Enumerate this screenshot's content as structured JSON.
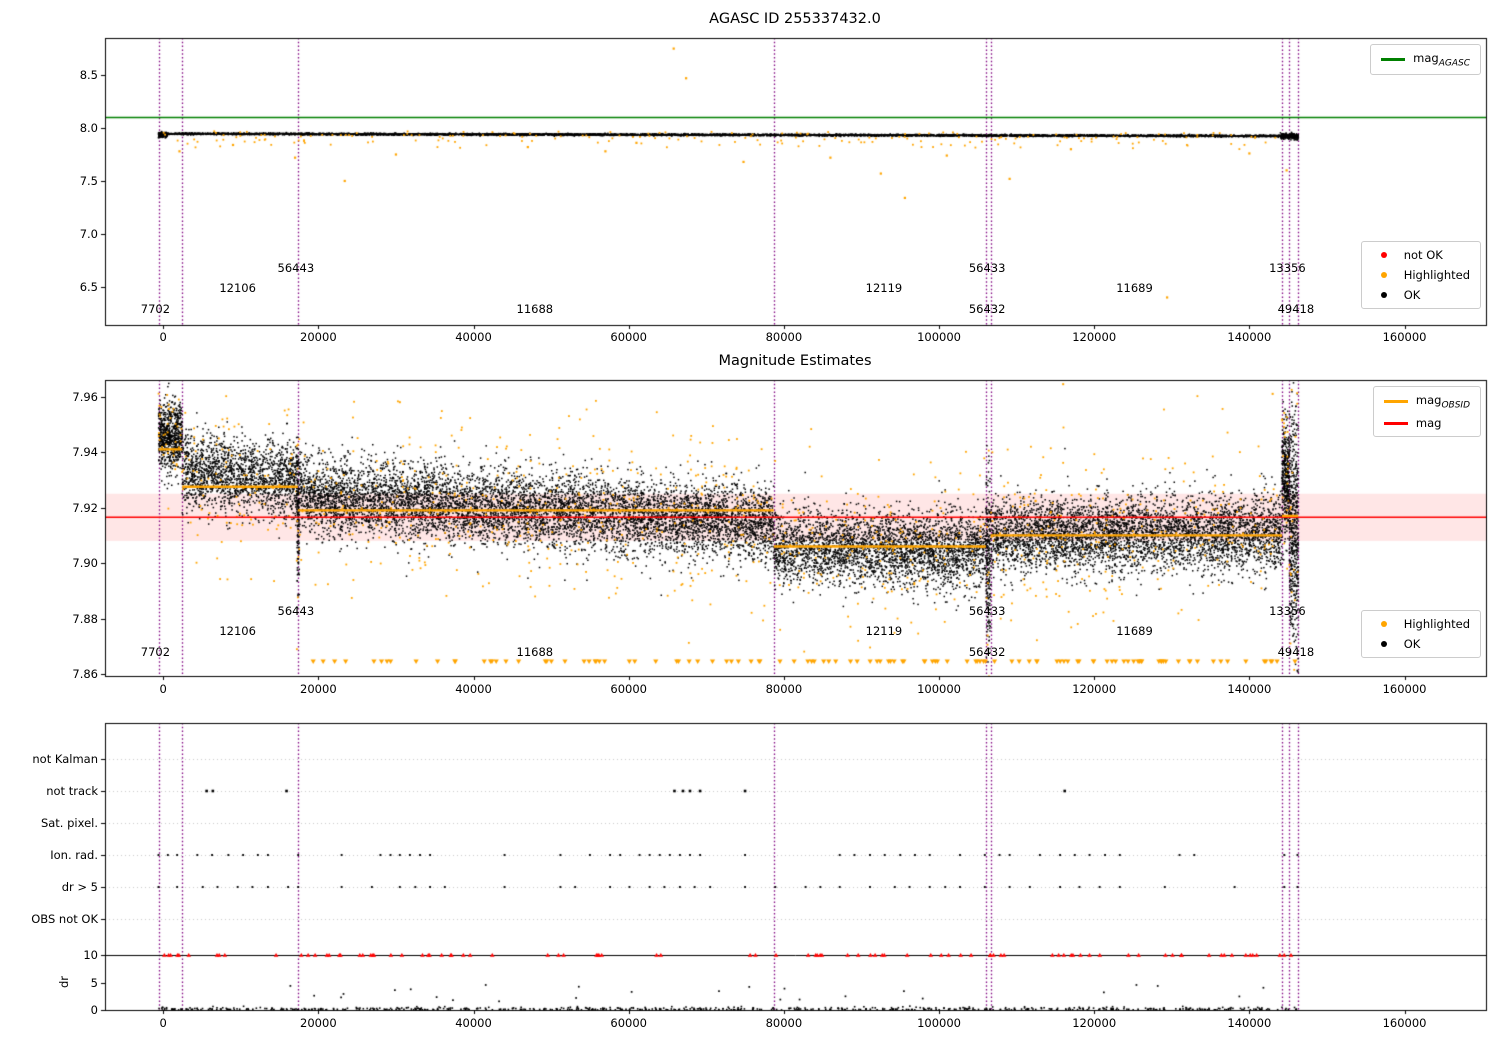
{
  "titles": {
    "top": "AGASC ID 255337432.0",
    "middle": "Magnitude Estimates"
  },
  "colors": {
    "ok": "#000000",
    "highlighted": "#ffa500",
    "not_ok": "#ff0000",
    "mag_agasc_line": "#008000",
    "mag_line": "#ff0000",
    "mag_band_fill": "rgba(255,60,60,0.13)",
    "mag_obsid_line": "#ffa500",
    "obsid_boundary": "#800080",
    "grid": "#c9c9c9",
    "dr_cap_line": "#000000"
  },
  "legends": {
    "top_line": [
      {
        "label": "mag",
        "sub": "AGASC",
        "color": "#008000",
        "marker": "line"
      }
    ],
    "top_points": [
      {
        "label": "not OK",
        "sub": "",
        "color": "#ff0000",
        "marker": "dot"
      },
      {
        "label": "Highlighted",
        "sub": "",
        "color": "#ffa500",
        "marker": "dot"
      },
      {
        "label": "OK",
        "sub": "",
        "color": "#000000",
        "marker": "dot"
      }
    ],
    "mid_lines": [
      {
        "label": "mag",
        "sub": "OBSID",
        "color": "#ffa500",
        "marker": "line"
      },
      {
        "label": "mag",
        "sub": "",
        "color": "#ff0000",
        "marker": "line"
      }
    ],
    "mid_points": [
      {
        "label": "Highlighted",
        "sub": "",
        "color": "#ffa500",
        "marker": "dot"
      },
      {
        "label": "OK",
        "sub": "",
        "color": "#000000",
        "marker": "dot"
      }
    ]
  },
  "x_ticks": [
    0,
    20000,
    40000,
    60000,
    80000,
    100000,
    120000,
    140000,
    160000
  ],
  "obsid_boundaries": [
    -600,
    2450,
    17350,
    78700,
    106050,
    106650,
    144200,
    145150,
    146300
  ],
  "obsid_labels": [
    {
      "id": "7702",
      "x": -1000,
      "tier": "low"
    },
    {
      "id": "12106",
      "x": 9600,
      "tier": "mid"
    },
    {
      "id": "56443",
      "x": 17100,
      "tier": "high"
    },
    {
      "id": "11688",
      "x": 47900,
      "tier": "low"
    },
    {
      "id": "12119",
      "x": 92900,
      "tier": "mid"
    },
    {
      "id": "56433",
      "x": 106200,
      "tier": "high"
    },
    {
      "id": "56432",
      "x": 106200,
      "tier": "low"
    },
    {
      "id": "11689",
      "x": 125200,
      "tier": "mid"
    },
    {
      "id": "13356",
      "x": 144900,
      "tier": "high"
    },
    {
      "id": "49418",
      "x": 146000,
      "tier": "low"
    }
  ],
  "chart_data": [
    {
      "type": "scatter",
      "title": "AGASC ID 255337432.0",
      "xlim": [
        -7500,
        170500
      ],
      "ylim": [
        6.14,
        8.85
      ],
      "yticks": [
        6.5,
        7.0,
        7.5,
        8.0,
        8.5
      ],
      "xticks": [
        0,
        20000,
        40000,
        60000,
        80000,
        100000,
        120000,
        140000,
        160000
      ],
      "legend_line": "mag_AGASC",
      "legend_points": [
        "not OK",
        "Highlighted",
        "OK"
      ],
      "mag_agasc": 8.1,
      "ok_band": {
        "x_start": -600,
        "x_end": 146300,
        "mag_start": 7.946,
        "mag_end": 7.924,
        "sd": 0.0042,
        "n": 6000
      },
      "edge_clusters": [
        {
          "x0": -600,
          "x1": 500,
          "mean": 7.936,
          "sd": 0.012,
          "n": 160
        },
        {
          "x0": 144000,
          "x1": 146300,
          "mean": 7.922,
          "sd": 0.013,
          "n": 240
        }
      ],
      "highlighted_scatter": {
        "n": 210,
        "below_frac": 0.8,
        "below_depth": 0.12,
        "above_height": 0.025
      },
      "highlighted_outliers": [
        [
          23400,
          7.5
        ],
        [
          65800,
          8.75
        ],
        [
          67400,
          8.47
        ],
        [
          74800,
          7.68
        ],
        [
          92500,
          7.57
        ],
        [
          95600,
          7.34
        ],
        [
          109100,
          7.52
        ],
        [
          129400,
          6.4
        ],
        [
          144800,
          7.6
        ],
        [
          17000,
          7.72
        ],
        [
          30000,
          7.75
        ],
        [
          57000,
          7.78
        ],
        [
          86000,
          7.72
        ],
        [
          101000,
          7.74
        ],
        [
          117000,
          7.8
        ],
        [
          140000,
          7.76
        ],
        [
          2100,
          7.78
        ],
        [
          9000,
          7.84
        ],
        [
          47000,
          7.82
        ],
        [
          61000,
          7.86
        ]
      ]
    },
    {
      "type": "scatter",
      "title": "Magnitude Estimates",
      "xlim": [
        -7500,
        170500
      ],
      "ylim": [
        7.8593,
        7.966
      ],
      "yticks": [
        7.86,
        7.88,
        7.9,
        7.92,
        7.94,
        7.96
      ],
      "legend_lines": [
        "mag_OBSID",
        "mag"
      ],
      "legend_points": [
        "Highlighted",
        "OK"
      ],
      "mag": 7.9165,
      "mag_band_halfwidth": 0.0085,
      "segments": [
        {
          "obsid": "7702",
          "x0": -600,
          "x1": 2450,
          "mag_obsid": 7.941,
          "mean0": 7.946,
          "mean1": 7.946,
          "sd": 0.0058,
          "n": 700
        },
        {
          "obsid": "12106",
          "x0": 2450,
          "x1": 17350,
          "mag_obsid": 7.9275,
          "mean0": 7.933,
          "mean1": 7.93,
          "sd": 0.0068,
          "n": 1700
        },
        {
          "obsid": "56443",
          "x0": 17200,
          "x1": 17550,
          "mag_obsid": null,
          "mean0": 7.915,
          "mean1": 7.915,
          "sd": 0.013,
          "n": 130
        },
        {
          "obsid": "11688",
          "x0": 17350,
          "x1": 78700,
          "mag_obsid": 7.919,
          "mean0": 7.9245,
          "mean1": 7.914,
          "sd": 0.0068,
          "n": 7000
        },
        {
          "obsid": "12119",
          "x0": 78700,
          "x1": 106050,
          "mag_obsid": 7.906,
          "mean0": 7.906,
          "mean1": 7.9045,
          "sd": 0.0066,
          "n": 3100
        },
        {
          "obsid": "56433/56432",
          "x0": 106050,
          "x1": 106650,
          "mag_obsid": null,
          "mean0": 7.9,
          "mean1": 7.9,
          "sd": 0.015,
          "n": 220
        },
        {
          "obsid": "11689",
          "x0": 106650,
          "x1": 144200,
          "mag_obsid": 7.91,
          "mean0": 7.9105,
          "mean1": 7.9105,
          "sd": 0.0066,
          "n": 4300
        },
        {
          "obsid": "13356",
          "x0": 144200,
          "x1": 145150,
          "mag_obsid": 7.917,
          "mean0": 7.932,
          "mean1": 7.932,
          "sd": 0.011,
          "n": 380
        },
        {
          "obsid": "49418",
          "x0": 145150,
          "x1": 146300,
          "mag_obsid": 7.917,
          "mean0": 7.912,
          "mean1": 7.912,
          "sd": 0.021,
          "n": 520
        }
      ],
      "below_range_triangle_mag": 7.8645,
      "below_range_triangles": {
        "n": 115,
        "x0": 15000,
        "x1": 146300
      },
      "high_outliers": [
        [
          116000,
          7.9645
        ],
        [
          30500,
          7.958
        ],
        [
          143000,
          7.961
        ]
      ]
    },
    {
      "type": "scatter",
      "xlim": [
        -7500,
        170500
      ],
      "rows": [
        "not Kalman",
        "not track",
        "Sat. pixel.",
        "Ion. rad.",
        "dr > 5",
        "OBS not OK"
      ],
      "dr_ticks": [
        10,
        5,
        0
      ],
      "dr_label": "dr",
      "dr_cap_line": 10,
      "not_track_x": [
        5600,
        6400,
        15900,
        65900,
        67000,
        67900,
        69200,
        75000,
        116200
      ],
      "ion_rad_x": [
        -600,
        600,
        1800,
        4400,
        6300,
        8400,
        10300,
        12200,
        13500,
        17400,
        23000,
        28000,
        29300,
        30500,
        31800,
        33100,
        34400,
        44000,
        51200,
        55000,
        57600,
        58900,
        61400,
        62700,
        64000,
        65300,
        66600,
        67900,
        69200,
        75000,
        87200,
        89100,
        91100,
        93000,
        95000,
        96900,
        98800,
        102700,
        105900,
        107800,
        109100,
        113000,
        115600,
        117500,
        119400,
        121400,
        123300,
        131000,
        132900,
        144500,
        146200
      ],
      "dr_gt5_x": [
        -600,
        1800,
        5100,
        7000,
        9600,
        11500,
        13500,
        16100,
        17400,
        23000,
        26900,
        30500,
        32500,
        34400,
        36300,
        44000,
        51200,
        53100,
        57600,
        60100,
        62700,
        64600,
        66600,
        68500,
        70500,
        75000,
        78900,
        82800,
        84700,
        87200,
        91100,
        94300,
        96200,
        98800,
        100800,
        102700,
        105900,
        109100,
        111700,
        115600,
        118100,
        120700,
        123300,
        129100,
        138100,
        144500,
        146200
      ],
      "dr_at_cap": {
        "n": 92,
        "x0": -600,
        "x1": 146300
      },
      "dr_baseline": {
        "n": 620,
        "x0": -600,
        "x1": 146300,
        "max_dr": 0.8
      },
      "dr_elevated": {
        "n": 26,
        "x0": 15000,
        "x1": 146300,
        "dr_min": 1.0,
        "dr_max": 4.6
      }
    }
  ]
}
